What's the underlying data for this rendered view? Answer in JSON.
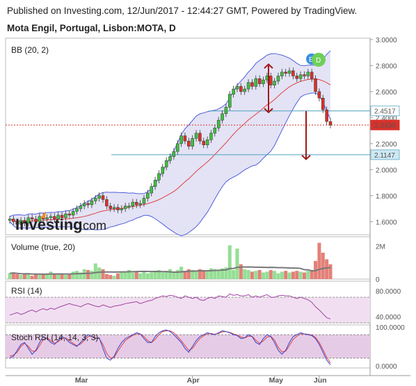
{
  "header": {
    "published": "Published on Investing.com, 12/Jun/2017 - 12:44:27 GMT, Powered by TradingView.",
    "symbol": "Mota Engil, Portugal, Lisbon:MOTA, D"
  },
  "panels": {
    "price_label": "BB (20, 2)",
    "volume_label": "Volume (true, 20)",
    "rsi_label": "RSI (14)",
    "stoch_label": "Stoch RSI (14, 14, 3, 3)"
  },
  "badges": {
    "e": "E",
    "d": "D"
  },
  "logo": {
    "main": "Investing",
    "suffix": ".com"
  },
  "colors": {
    "up": "#3fbf3f",
    "down": "#d9312b",
    "band": "#4f5fdc",
    "band_fill": "#dcdcf2",
    "basis": "#e04040",
    "rsi": "#a040a0",
    "stoch_k": "#3344cc",
    "stoch_d": "#e04040",
    "vol_ma": "#777777"
  },
  "chart_data": [
    {
      "type": "candlestick",
      "name": "Price",
      "yaxis_ticks": [
        "3.0000",
        "2.8000",
        "2.6000",
        "2.4000",
        "2.2000",
        "2.0000",
        "1.8000",
        "1.6000"
      ],
      "ylim": [
        1.5,
        3.0
      ],
      "price_tags": [
        {
          "label": "2.4517",
          "value": 2.4517
        },
        {
          "label": "2.3430",
          "value": 2.343
        },
        {
          "label": "2.1147",
          "value": 2.1147
        }
      ],
      "months": [
        "Mar",
        "Apr",
        "May",
        "Jun"
      ],
      "close": [
        1.62,
        1.6,
        1.58,
        1.61,
        1.59,
        1.63,
        1.62,
        1.6,
        1.64,
        1.62,
        1.63,
        1.64,
        1.62,
        1.65,
        1.63,
        1.66,
        1.65,
        1.68,
        1.7,
        1.72,
        1.74,
        1.73,
        1.76,
        1.78,
        1.8,
        1.77,
        1.72,
        1.7,
        1.71,
        1.69,
        1.7,
        1.72,
        1.72,
        1.75,
        1.73,
        1.74,
        1.78,
        1.82,
        1.87,
        1.92,
        1.97,
        2.02,
        2.07,
        2.1,
        2.14,
        2.2,
        2.26,
        2.22,
        2.18,
        2.24,
        2.28,
        2.22,
        2.19,
        2.23,
        2.28,
        2.32,
        2.38,
        2.43,
        2.48,
        2.58,
        2.62,
        2.64,
        2.6,
        2.62,
        2.67,
        2.64,
        2.7,
        2.66,
        2.69,
        2.72,
        2.65,
        2.68,
        2.72,
        2.75,
        2.74,
        2.76,
        2.72,
        2.7,
        2.73,
        2.72,
        2.75,
        2.7,
        2.6,
        2.55,
        2.46,
        2.37,
        2.343
      ],
      "volume": [
        0.35,
        0.4,
        0.3,
        0.25,
        0.3,
        0.35,
        0.2,
        0.3,
        0.25,
        0.3,
        0.28,
        0.45,
        0.3,
        0.35,
        0.3,
        0.25,
        0.3,
        0.45,
        0.5,
        0.4,
        0.6,
        0.55,
        0.5,
        0.95,
        0.7,
        0.6,
        0.3,
        0.25,
        0.2,
        0.35,
        0.4,
        0.45,
        0.55,
        0.4,
        0.45,
        0.35,
        0.45,
        0.35,
        0.4,
        0.45,
        0.55,
        0.4,
        0.5,
        0.6,
        0.45,
        0.55,
        0.75,
        0.5,
        0.6,
        0.55,
        0.5,
        0.6,
        0.55,
        0.5,
        0.65,
        0.6,
        0.55,
        0.65,
        0.7,
        2.05,
        0.55,
        1.85,
        0.9,
        0.6,
        0.55,
        0.45,
        0.5,
        0.55,
        0.4,
        0.45,
        0.55,
        0.5,
        0.35,
        0.45,
        0.5,
        0.4,
        0.45,
        0.5,
        0.45,
        0.4,
        0.5,
        0.55,
        1.1,
        2.2,
        1.6,
        1.2,
        0.9
      ],
      "volume_ticks": [
        "2M",
        "0"
      ]
    },
    {
      "type": "line",
      "name": "RSI",
      "yaxis_ticks": [
        "80.0000",
        "40.0000"
      ],
      "ylim": [
        30,
        95
      ],
      "bands": [
        70,
        30
      ],
      "values": [
        42,
        44,
        46,
        43,
        45,
        48,
        50,
        47,
        50,
        52,
        50,
        53,
        51,
        54,
        56,
        58,
        60,
        58,
        57,
        55,
        58,
        60,
        58,
        56,
        55,
        58,
        56,
        54,
        56,
        57,
        58,
        60,
        61,
        62,
        63,
        60,
        62,
        64,
        65,
        68,
        70,
        72,
        71,
        73,
        72,
        70,
        68,
        72,
        70,
        68,
        70,
        66,
        65,
        68,
        70,
        68,
        72,
        71,
        70,
        75,
        73,
        74,
        72,
        72,
        74,
        70,
        72,
        70,
        72,
        74,
        70,
        70,
        72,
        73,
        72,
        72,
        70,
        68,
        70,
        68,
        66,
        62,
        55,
        50,
        44,
        38,
        36
      ]
    },
    {
      "type": "line",
      "name": "Stoch RSI",
      "yaxis_ticks": [
        "100.0000",
        "0.0000"
      ],
      "ylim": [
        -5,
        105
      ],
      "bands": [
        80,
        20
      ],
      "k": [
        20,
        25,
        40,
        55,
        60,
        45,
        30,
        40,
        60,
        75,
        70,
        60,
        55,
        65,
        75,
        70,
        60,
        55,
        50,
        60,
        70,
        80,
        75,
        70,
        72,
        45,
        20,
        15,
        25,
        45,
        60,
        70,
        75,
        80,
        85,
        82,
        70,
        60,
        60,
        75,
        85,
        90,
        92,
        88,
        80,
        70,
        60,
        45,
        35,
        50,
        65,
        75,
        80,
        85,
        82,
        80,
        85,
        90,
        88,
        85,
        80,
        78,
        70,
        72,
        80,
        75,
        60,
        55,
        70,
        80,
        75,
        60,
        40,
        30,
        40,
        60,
        75,
        80,
        85,
        82,
        80,
        78,
        70,
        55,
        35,
        15,
        3
      ],
      "d": [
        25,
        28,
        35,
        50,
        58,
        50,
        38,
        38,
        52,
        68,
        72,
        65,
        58,
        62,
        70,
        72,
        65,
        58,
        52,
        56,
        65,
        75,
        76,
        72,
        70,
        55,
        32,
        20,
        22,
        38,
        52,
        65,
        72,
        78,
        82,
        82,
        75,
        65,
        60,
        68,
        80,
        88,
        90,
        90,
        85,
        75,
        65,
        52,
        40,
        45,
        58,
        70,
        77,
        82,
        83,
        81,
        83,
        87,
        88,
        86,
        82,
        79,
        74,
        72,
        76,
        76,
        66,
        58,
        64,
        74,
        76,
        66,
        48,
        36,
        38,
        52,
        68,
        76,
        82,
        82,
        81,
        79,
        73,
        60,
        42,
        22,
        8
      ]
    }
  ]
}
